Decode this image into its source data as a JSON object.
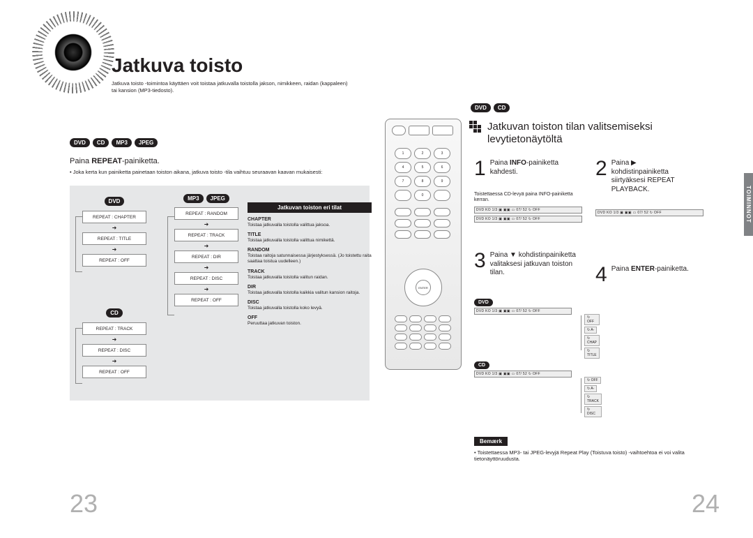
{
  "page_left_num": "23",
  "page_right_num": "24",
  "title": "Jatkuva toisto",
  "title_sub": "Jatkuva toisto -toimintoa käyttäen voit toistaa jatkuvalla toistolla jakson, nimikkeen, raidan (kappaleen) tai kansion (MP3-tiedosto).",
  "media_all": [
    "DVD",
    "CD",
    "MP3",
    "JPEG"
  ],
  "sectionA_instr_pre": "Paina ",
  "sectionA_instr_bold": "REPEAT",
  "sectionA_instr_post": "-painiketta.",
  "sectionA_bullet": "• Joka kerta kun painiketta painetaan toiston aikana, jatkuva toisto -tila vaihtuu seuraavan kaavan mukaisesti:",
  "flow_dvd_label": "DVD",
  "flow_dvd": [
    "REPEAT : CHAPTER",
    "REPEAT : TITLE",
    "REPEAT : OFF"
  ],
  "flow_cd_label": "CD",
  "flow_cd": [
    "REPEAT : TRACK",
    "REPEAT : DISC",
    "REPEAT : OFF"
  ],
  "flow_mp3_labels": [
    "MP3",
    "JPEG"
  ],
  "flow_mp3": [
    "REPEAT : RANDOM",
    "REPEAT : TRACK",
    "REPEAT : DIR",
    "REPEAT : DISC",
    "REPEAT : OFF"
  ],
  "modes_hd": "Jatkuvan toiston eri tilat",
  "modes": [
    {
      "n": "CHAPTER",
      "d": "Toistaa jatkuvalla toistolla valittua jaksoa."
    },
    {
      "n": "TITLE",
      "d": "Toistaa jatkuvalla toistolla valittua nimikettä."
    },
    {
      "n": "RANDOM",
      "d": "Toistaa raitoja satunnaisessa järjestyksessä.\n(Jo toistettu raita saattaa toistua uudelleen.)"
    },
    {
      "n": "TRACK",
      "d": "Toistaa jatkuvalla toistolla valitun raidan."
    },
    {
      "n": "DIR",
      "d": "Toistaa jatkuvalla toistolla kaikkia valitun kansion raitoja."
    },
    {
      "n": "DISC",
      "d": "Toistaa jatkuvalla toistolla koko levyä."
    },
    {
      "n": "OFF",
      "d": "Peruuttaa jatkuvan toiston."
    }
  ],
  "right_media": [
    "DVD",
    "CD"
  ],
  "chev_title": "Jatkuvan toiston tilan valitsemiseksi levytietonäytöltä",
  "side_tab": "TOIMINNOT",
  "step1_pre": "Paina ",
  "step1_bold": "INFO",
  "step1_post": "-painiketta kahdesti.",
  "step1_sub": "Toistettaessa CD-levyä paina INFO-painiketta kerran.",
  "display_line": "DVD   KO 1/3  ▣ ▣▣   ▭ 07/ 52   ↻ OFF",
  "step2_pre": "Paina ▶ kohdistinpainiketta siirtyäksesi REPEAT PLAYBACK.",
  "step3_pre": "Paina ▼ kohdistinpainiketta valitaksesi jatkuvan toiston tilan.",
  "step4_pre": "Paina ",
  "step4_bold": "ENTER",
  "step4_post": "-painiketta.",
  "cycle_dvd_label": "DVD",
  "cycle_dvd": [
    "↻ OFF",
    "↻ A-",
    "↻ CHAP",
    "↻ TITLE"
  ],
  "cycle_cd_label": "CD",
  "cycle_cd": [
    "↻ OFF",
    "↻ A-",
    "↻ TRACK",
    "↻ DISC"
  ],
  "note_hd": "Bemærk",
  "note_body": "• Toistettaessa MP3- tai JPEG-levyjä Repeat Play (Toistuva toisto) -vaihtoehtoa ei voi valita tietonäyttöruudusta.",
  "remote_enter": "ENTER"
}
